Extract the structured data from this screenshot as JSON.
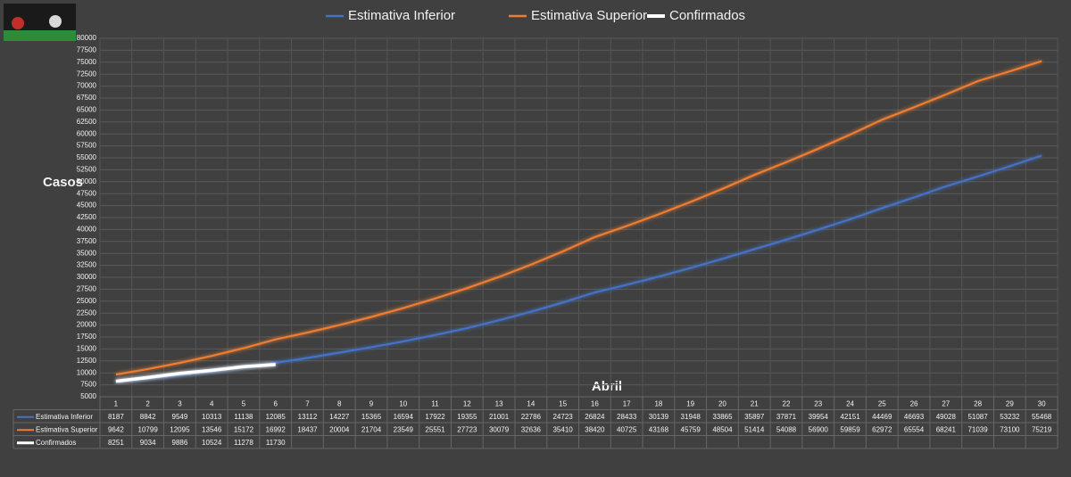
{
  "chart_data": {
    "type": "line",
    "y_label": "Casos",
    "x_label": "Abril",
    "categories": [
      "1",
      "2",
      "3",
      "4",
      "5",
      "6",
      "7",
      "8",
      "9",
      "10",
      "11",
      "12",
      "13",
      "14",
      "15",
      "16",
      "17",
      "18",
      "19",
      "20",
      "21",
      "22",
      "23",
      "24",
      "25",
      "26",
      "27",
      "28",
      "29",
      "30"
    ],
    "series": [
      {
        "name": "Estimativa Inferior",
        "color": "#4472c4",
        "values": [
          8187,
          8842,
          9549,
          10313,
          11138,
          12085,
          13112,
          14227,
          15365,
          16594,
          17922,
          19355,
          21001,
          22786,
          24723,
          26824,
          28433,
          30139,
          31948,
          33865,
          35897,
          37871,
          39954,
          42151,
          44469,
          46693,
          49028,
          51087,
          53232,
          55468
        ]
      },
      {
        "name": "Estimativa Superior",
        "color": "#ed7d31",
        "values": [
          9642,
          10799,
          12095,
          13546,
          15172,
          16992,
          18437,
          20004,
          21704,
          23549,
          25551,
          27723,
          30079,
          32636,
          35410,
          38420,
          40725,
          43168,
          45759,
          48504,
          51414,
          54088,
          56900,
          59859,
          62972,
          65554,
          68241,
          71039,
          73100,
          75219
        ]
      },
      {
        "name": "Confirmados",
        "color": "#ffffff",
        "values": [
          8251,
          9034,
          9886,
          10524,
          11278,
          11730,
          null,
          null,
          null,
          null,
          null,
          null,
          null,
          null,
          null,
          null,
          null,
          null,
          null,
          null,
          null,
          null,
          null,
          null,
          null,
          null,
          null,
          null,
          null,
          null
        ]
      }
    ],
    "ylim": [
      5000,
      80000
    ],
    "yticks": [
      5000,
      7500,
      10000,
      12500,
      15000,
      17500,
      20000,
      22500,
      25000,
      27500,
      30000,
      32500,
      35000,
      37500,
      40000,
      42500,
      45000,
      47500,
      50000,
      52500,
      55000,
      57500,
      60000,
      62500,
      65000,
      67500,
      70000,
      72500,
      75000,
      77500,
      80000
    ],
    "grid": true
  }
}
